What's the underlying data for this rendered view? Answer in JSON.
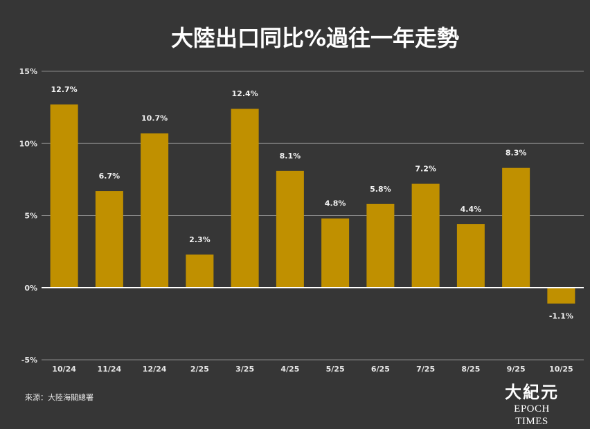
{
  "chart_data": {
    "type": "bar",
    "title": "大陸出口同比%過往一年走勢",
    "categories": [
      "10/24",
      "11/24",
      "12/24",
      "2/25",
      "3/25",
      "4/25",
      "5/25",
      "6/25",
      "7/25",
      "8/25",
      "9/25",
      "10/25"
    ],
    "values": [
      12.7,
      6.7,
      10.7,
      2.3,
      12.4,
      8.1,
      4.8,
      5.8,
      7.2,
      4.4,
      8.3,
      -1.1
    ],
    "value_labels": [
      "12.7%",
      "6.7%",
      "10.7%",
      "2.3%",
      "12.4%",
      "8.1%",
      "4.8%",
      "5.8%",
      "7.2%",
      "4.4%",
      "8.3%",
      "-1.1%"
    ],
    "ylim": [
      -5,
      15
    ],
    "yticks": [
      -5,
      0,
      5,
      10,
      15
    ],
    "ytick_labels": [
      "-5%",
      "0%",
      "5%",
      "10%",
      "15%"
    ],
    "xlabel": "",
    "ylabel": "",
    "grid": true,
    "legend": "none",
    "colors": {
      "bar": "#c09000",
      "background": "#363636",
      "grid": "#8a8a8a",
      "zero_line": "#ffffff",
      "text": "#ffffff"
    }
  },
  "footer": {
    "source": "來源：大陸海關總署",
    "logo_cn": "大紀元",
    "logo_en": "EPOCH TIMES"
  }
}
